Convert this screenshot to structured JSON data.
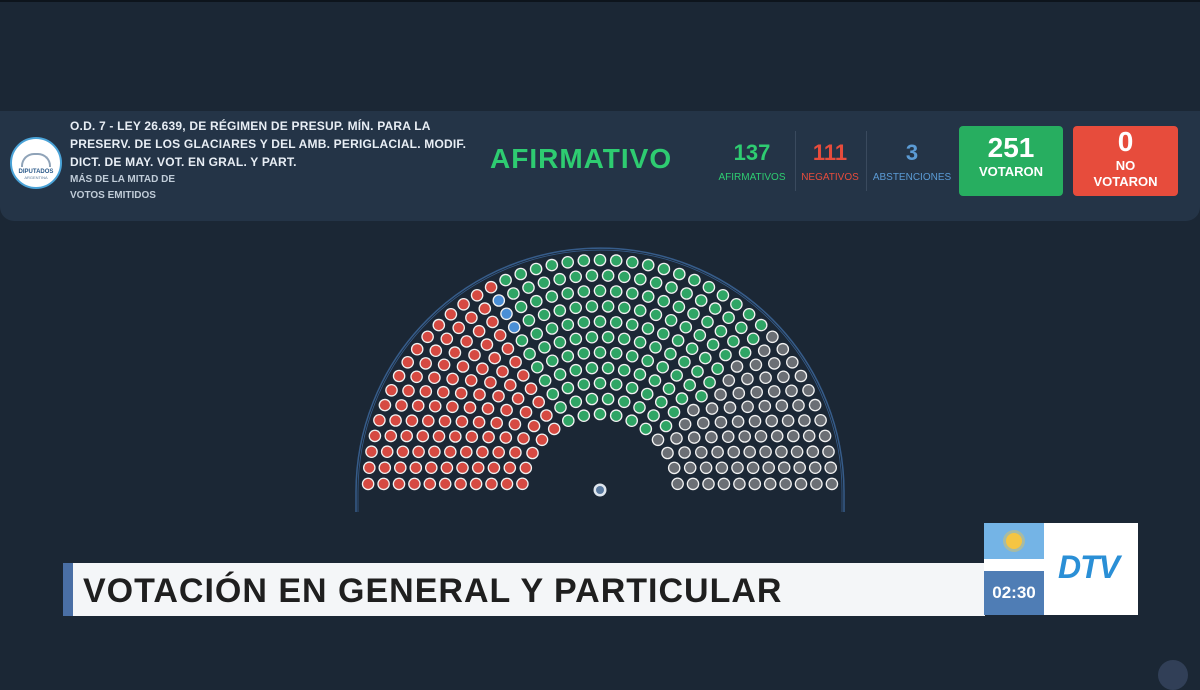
{
  "header": {
    "logo_line1": "DIPUTADOS",
    "logo_line2": "ARGENTINA",
    "title_line1": "O.D. 7 - LEY 26.639, DE RÉGIMEN DE PRESUP. MÍN. PARA LA",
    "title_line2": "PRESERV. DE LOS GLACIARES Y DEL AMB. PERIGLACIAL. MODIF.",
    "title_line3": "DICT. DE MAY. VOT. EN GRAL. Y PART.",
    "subtitle_line1": "MÁS DE LA MITAD DE",
    "subtitle_line2": "VOTOS EMITIDOS",
    "result": "AFIRMATIVO",
    "afirmativos": {
      "value": "137",
      "label": "AFIRMATIVOS"
    },
    "negativos": {
      "value": "111",
      "label": "NEGATIVOS"
    },
    "abstenciones": {
      "value": "3",
      "label": "ABSTENCIONES"
    },
    "votaron": {
      "value": "251",
      "label": "VOTARON"
    },
    "no_votaron": {
      "value": "0",
      "label_line1": "NO",
      "label_line2": "VOTARON"
    }
  },
  "chamber": {
    "afirmativo_count": 137,
    "negativo_count": 111,
    "abstencion_count": 3,
    "colors": {
      "afirmativo": "#2fa565",
      "negativo": "#d64a42",
      "abstencion": "#4a8fd6",
      "ausente": "#6b6f75",
      "arc": "#3d6aa0"
    }
  },
  "banner": {
    "text": "VOTACIÓN EN GENERAL Y PARTICULAR",
    "clock": "02:30",
    "channel_logo": "DTV"
  },
  "colors": {
    "background": "#1b2735",
    "panel": "#243447",
    "green": "#2ecc71",
    "red": "#e74c3c",
    "blue": "#5b9bd5",
    "votaron_box": "#27ae60",
    "no_votaron_box": "#e74c3c"
  }
}
